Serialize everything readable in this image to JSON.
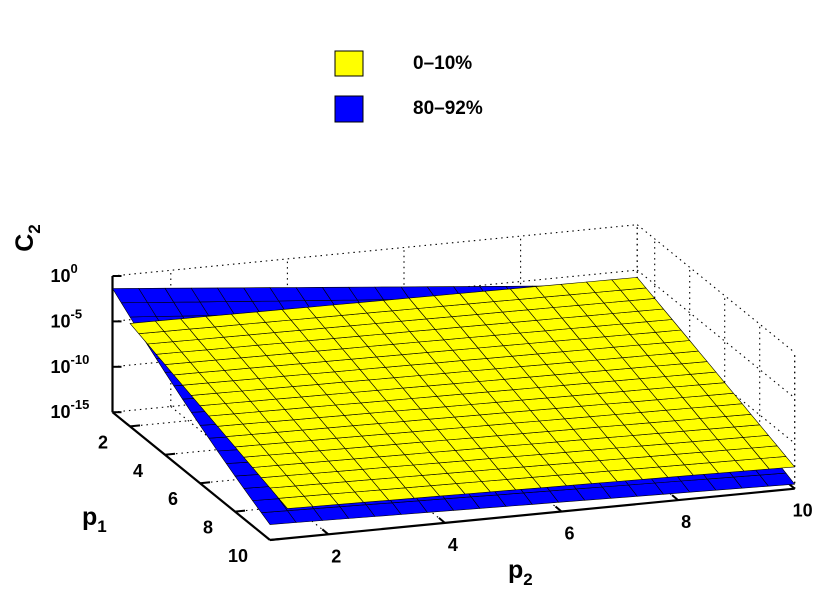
{
  "chart_data": {
    "type": "surface3d",
    "title": "",
    "x_axis": {
      "label": "p",
      "label_sub": "1",
      "ticks": [
        "2",
        "4",
        "6",
        "8",
        "10"
      ],
      "range": [
        1,
        10
      ]
    },
    "y_axis": {
      "label": "p",
      "label_sub": "2",
      "ticks": [
        "2",
        "4",
        "6",
        "8",
        "10"
      ],
      "range": [
        1,
        10
      ]
    },
    "z_axis": {
      "label": "C",
      "label_sub": "2",
      "scale": "log",
      "ticks": [
        {
          "base": "10",
          "exp": "0"
        },
        {
          "base": "10",
          "exp": "-5"
        },
        {
          "base": "10",
          "exp": "-10"
        },
        {
          "base": "10",
          "exp": "-15"
        }
      ],
      "range_exponent": [
        -15,
        0
      ]
    },
    "grid": true,
    "legend": {
      "position": "top-center"
    },
    "series": [
      {
        "name": "0–10%",
        "color": "#ffff00",
        "surface_log10_corners": {
          "p1_1_p2_1": -5.4,
          "p1_1_p2_10": -5.8,
          "p1_10_p2_1": -12.2,
          "p1_10_p2_10": -12.6
        },
        "p1_range": [
          1,
          10
        ],
        "p2_range": [
          1.3,
          10
        ]
      },
      {
        "name": "80–92%",
        "color": "#0000ff",
        "surface_log10_corners": {
          "p1_1_p2_1": -3.9,
          "p1_1_p2_10": -6.1,
          "p1_10_p2_1": -13.3,
          "p1_10_p2_10": -14.5
        },
        "p1_range": [
          1,
          10
        ],
        "p2_range": [
          1,
          10
        ]
      }
    ]
  }
}
